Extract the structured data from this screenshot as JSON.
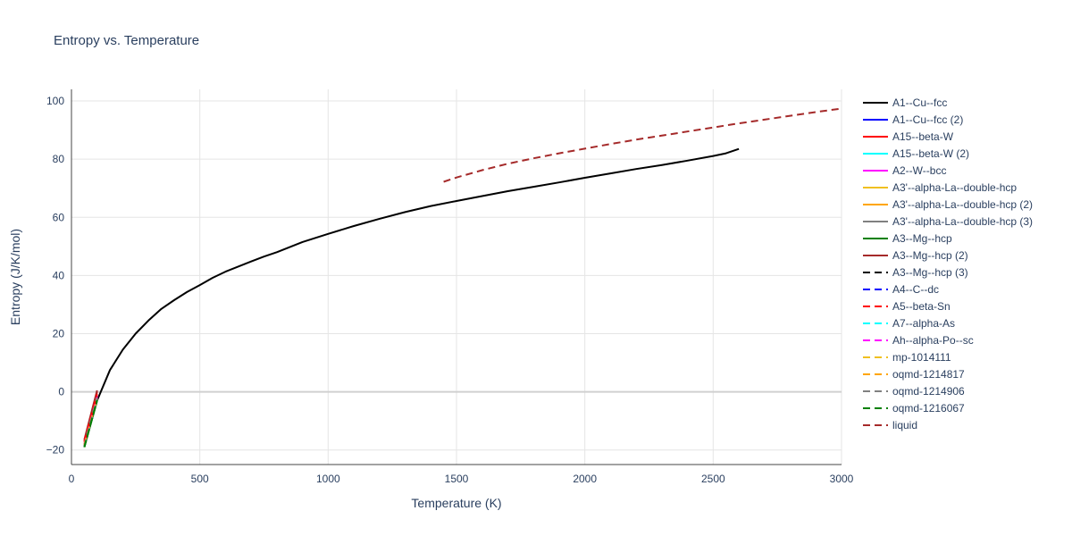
{
  "chart_data": {
    "type": "line",
    "title": "Entropy vs. Temperature",
    "xlabel": "Temperature (K)",
    "ylabel": "Entropy (J/K/mol)",
    "xlim": [
      0,
      3000
    ],
    "ylim": [
      -25,
      104
    ],
    "xticks": [
      0,
      500,
      1000,
      1500,
      2000,
      2500,
      3000
    ],
    "yticks": [
      -20,
      0,
      20,
      40,
      60,
      80,
      100
    ],
    "grid": true,
    "legend_position": "right",
    "series": [
      {
        "name": "A1--Cu--fcc",
        "color": "#000000",
        "dash": "solid",
        "x": [
          50,
          100,
          150,
          200,
          250,
          300,
          350,
          400,
          450,
          500,
          550,
          600,
          700,
          750,
          800,
          900,
          1000,
          1100,
          1200,
          1300,
          1400,
          1500,
          1600,
          1700,
          1800,
          1900,
          2000,
          2100,
          2200,
          2300,
          2400,
          2500,
          2550,
          2600
        ],
        "y": [
          -19,
          -3,
          7.5,
          14.5,
          20,
          24.5,
          28.5,
          31.5,
          34.3,
          36.7,
          39.2,
          41.3,
          44.8,
          46.5,
          48,
          51.5,
          54.3,
          57,
          59.5,
          61.8,
          63.9,
          65.6,
          67.3,
          69,
          70.5,
          72,
          73.6,
          75.1,
          76.6,
          78,
          79.5,
          81.1,
          82,
          83.5
        ]
      },
      {
        "name": "A1--Cu--fcc (2)",
        "color": "#0000ff",
        "dash": "solid",
        "x": [
          50,
          100
        ],
        "y": [
          -18.5,
          -2
        ]
      },
      {
        "name": "A15--beta-W",
        "color": "#ff0000",
        "dash": "solid",
        "x": [
          50,
          100
        ],
        "y": [
          -17,
          0
        ]
      },
      {
        "name": "A15--beta-W (2)",
        "color": "#00ffff",
        "dash": "solid",
        "x": [
          50,
          100
        ],
        "y": [
          -18.5,
          -2.5
        ]
      },
      {
        "name": "A2--W--bcc",
        "color": "#ff00ff",
        "dash": "solid",
        "x": [
          50,
          100
        ],
        "y": [
          -18,
          -1.5
        ]
      },
      {
        "name": "A3'--alpha-La--double-hcp",
        "color": "#f0c020",
        "dash": "solid",
        "x": [
          50,
          100
        ],
        "y": [
          -18,
          -2
        ]
      },
      {
        "name": "A3'--alpha-La--double-hcp (2)",
        "color": "#ffa500",
        "dash": "solid",
        "x": [
          50,
          100
        ],
        "y": [
          -18.2,
          -2.2
        ]
      },
      {
        "name": "A3'--alpha-La--double-hcp (3)",
        "color": "#808080",
        "dash": "solid",
        "x": [
          50,
          100
        ],
        "y": [
          -18.4,
          -2.4
        ]
      },
      {
        "name": "A3--Mg--hcp",
        "color": "#008000",
        "dash": "solid",
        "x": [
          50,
          100
        ],
        "y": [
          -19,
          -3
        ]
      },
      {
        "name": "A3--Mg--hcp (2)",
        "color": "#a52a2a",
        "dash": "solid",
        "x": [
          50,
          100
        ],
        "y": [
          -16.5,
          0.5
        ]
      },
      {
        "name": "A3--Mg--hcp (3)",
        "color": "#000000",
        "dash": "dash",
        "x": [
          50,
          100
        ],
        "y": [
          -18.6,
          -2.6
        ]
      },
      {
        "name": "A4--C--dc",
        "color": "#0000ff",
        "dash": "dash",
        "x": [
          50,
          100
        ],
        "y": [
          -18.3,
          -2.3
        ]
      },
      {
        "name": "A5--beta-Sn",
        "color": "#ff0000",
        "dash": "dash",
        "x": [
          50,
          100
        ],
        "y": [
          -17.2,
          -0.8
        ]
      },
      {
        "name": "A7--alpha-As",
        "color": "#00ffff",
        "dash": "dash",
        "x": [
          50,
          100
        ],
        "y": [
          -18.7,
          -2.7
        ]
      },
      {
        "name": "Ah--alpha-Po--sc",
        "color": "#ff00ff",
        "dash": "dash",
        "x": [
          50,
          100
        ],
        "y": [
          -18.1,
          -1.9
        ]
      },
      {
        "name": "mp-1014111",
        "color": "#f0c020",
        "dash": "dash",
        "x": [
          50,
          100
        ],
        "y": [
          -18.4,
          -2.1
        ]
      },
      {
        "name": "oqmd-1214817",
        "color": "#ffa500",
        "dash": "dash",
        "x": [
          50,
          100
        ],
        "y": [
          -18.2,
          -2.5
        ]
      },
      {
        "name": "oqmd-1214906",
        "color": "#808080",
        "dash": "dash",
        "x": [
          50,
          100
        ],
        "y": [
          -18.6,
          -2.2
        ]
      },
      {
        "name": "oqmd-1216067",
        "color": "#008000",
        "dash": "dash",
        "x": [
          50,
          100
        ],
        "y": [
          -19,
          -2.9
        ]
      },
      {
        "name": "liquid",
        "color": "#a52a2a",
        "dash": "dash",
        "x": [
          1450,
          1500,
          1600,
          1700,
          1800,
          1900,
          2000,
          2100,
          2200,
          2300,
          2400,
          2500,
          2600,
          2700,
          2800,
          2900,
          3000
        ],
        "y": [
          72.2,
          73.7,
          76.2,
          78.4,
          80.3,
          82,
          83.6,
          85.2,
          86.7,
          88.1,
          89.5,
          90.9,
          92.3,
          93.6,
          94.9,
          96.2,
          97.4
        ]
      }
    ]
  }
}
